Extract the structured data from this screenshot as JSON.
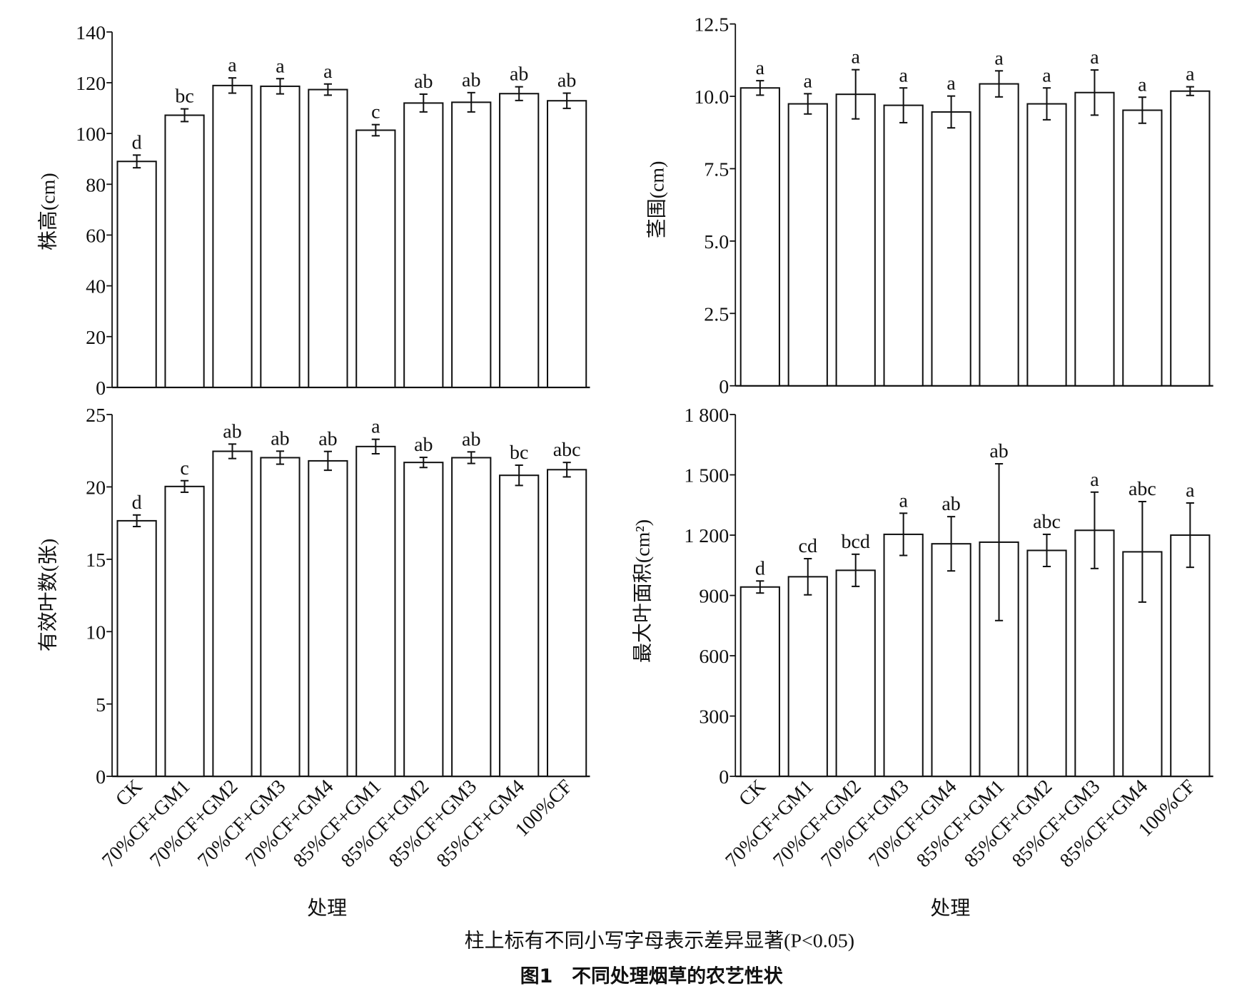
{
  "figure": {
    "caption": "柱上标有不同小写字母表示差异显著(P<0.05)",
    "title": "图1　不同处理烟草的农艺性状"
  },
  "chart_data": [
    {
      "type": "bar",
      "ylabel": "株高(cm)",
      "xlabel": "",
      "ylim": [
        0,
        140
      ],
      "yticks": [
        0,
        20,
        40,
        60,
        80,
        100,
        120,
        140
      ],
      "ytick_labels": [
        "0",
        "20",
        "40",
        "60",
        "80",
        "100",
        "120",
        "140"
      ],
      "categories": [
        "CK",
        "70%CF+GM1",
        "70%CF+GM2",
        "70%CF+GM3",
        "70%CF+GM4",
        "85%CF+GM1",
        "85%CF+GM2",
        "85%CF+GM3",
        "85%CF+GM4",
        "100%CF"
      ],
      "values": [
        89.0,
        107.2,
        118.9,
        118.6,
        117.3,
        101.3,
        112.0,
        112.3,
        115.7,
        112.9
      ],
      "errors": [
        2.5,
        2.5,
        3.0,
        3.0,
        2.2,
        2.2,
        3.5,
        3.8,
        2.7,
        3.0
      ],
      "letters": [
        "d",
        "bc",
        "a",
        "a",
        "a",
        "c",
        "ab",
        "ab",
        "ab",
        "ab"
      ],
      "show_xticks": false
    },
    {
      "type": "bar",
      "ylabel": "茎围(cm)",
      "xlabel": "",
      "ylim": [
        0,
        12.5
      ],
      "yticks": [
        0,
        2.5,
        5.0,
        7.5,
        10.0,
        12.5
      ],
      "ytick_labels": [
        "0",
        "2.5",
        "5.0",
        "7.5",
        "10.0",
        "12.5"
      ],
      "categories": [
        "CK",
        "70%CF+GM1",
        "70%CF+GM2",
        "70%CF+GM3",
        "70%CF+GM4",
        "85%CF+GM1",
        "85%CF+GM2",
        "85%CF+GM3",
        "85%CF+GM4",
        "100%CF"
      ],
      "values": [
        10.29,
        9.74,
        10.07,
        9.69,
        9.46,
        10.43,
        9.74,
        10.13,
        9.52,
        10.18
      ],
      "errors": [
        0.25,
        0.35,
        0.85,
        0.6,
        0.55,
        0.45,
        0.55,
        0.78,
        0.45,
        0.15
      ],
      "letters": [
        "a",
        "a",
        "a",
        "a",
        "a",
        "a",
        "a",
        "a",
        "a",
        "a"
      ],
      "show_xticks": false
    },
    {
      "type": "bar",
      "ylabel": "有效叶数(张)",
      "xlabel": "处理",
      "ylim": [
        0,
        25
      ],
      "yticks": [
        0,
        5,
        10,
        15,
        20,
        25
      ],
      "ytick_labels": [
        "0",
        "5",
        "10",
        "15",
        "20",
        "25"
      ],
      "categories": [
        "CK",
        "70%CF+GM1",
        "70%CF+GM2",
        "70%CF+GM3",
        "70%CF+GM4",
        "85%CF+GM1",
        "85%CF+GM2",
        "85%CF+GM3",
        "85%CF+GM4",
        "100%CF"
      ],
      "values": [
        17.66,
        20.03,
        22.46,
        22.02,
        21.8,
        22.79,
        21.69,
        22.02,
        20.8,
        21.19
      ],
      "errors": [
        0.4,
        0.4,
        0.5,
        0.45,
        0.65,
        0.5,
        0.35,
        0.4,
        0.7,
        0.5
      ],
      "letters": [
        "d",
        "c",
        "ab",
        "ab",
        "ab",
        "a",
        "ab",
        "ab",
        "bc",
        "abc"
      ],
      "show_xticks": true
    },
    {
      "type": "bar",
      "ylabel": "最大叶面积(cm²)",
      "xlabel": "处理",
      "ylim": [
        0,
        1800
      ],
      "yticks": [
        0,
        300,
        600,
        900,
        1200,
        1500,
        1800
      ],
      "ytick_labels": [
        "0",
        "300",
        "600",
        "900",
        "1 200",
        "1 500",
        "1 800"
      ],
      "categories": [
        "CK",
        "70%CF+GM1",
        "70%CF+GM2",
        "70%CF+GM3",
        "70%CF+GM4",
        "85%CF+GM1",
        "85%CF+GM2",
        "85%CF+GM3",
        "85%CF+GM4",
        "100%CF"
      ],
      "values": [
        942,
        993,
        1025,
        1204,
        1157,
        1165,
        1124,
        1224,
        1117,
        1200
      ],
      "errors": [
        30,
        90,
        80,
        105,
        135,
        390,
        80,
        190,
        250,
        160
      ],
      "letters": [
        "d",
        "cd",
        "bcd",
        "a",
        "ab",
        "ab",
        "abc",
        "a",
        "abc",
        "a"
      ],
      "show_xticks": true
    }
  ]
}
